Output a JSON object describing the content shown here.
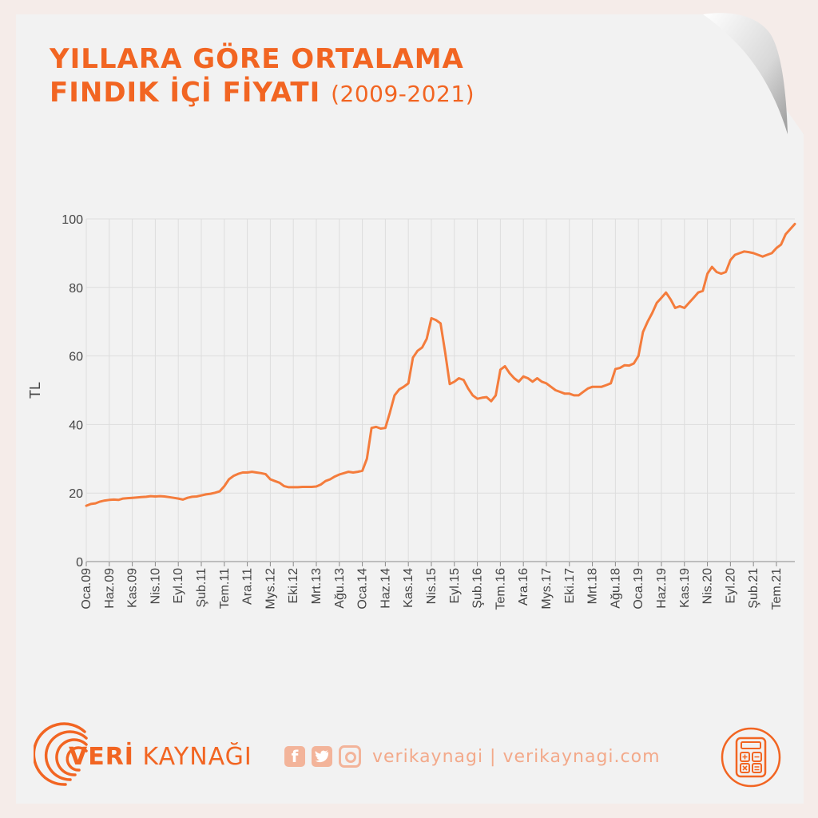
{
  "title": {
    "line1": "YILLARA GÖRE ORTALAMA",
    "line2": "FINDIK İÇİ FİYATI",
    "years": "(2009-2021)"
  },
  "footer": {
    "brand_bold": "VERİ",
    "brand_rest": "KAYNAĞI",
    "social_text": "verikaynagi | verikaynagi.com",
    "icons": [
      "facebook-icon",
      "twitter-icon",
      "instagram-icon",
      "calculator-icon"
    ]
  },
  "colors": {
    "accent": "#f26522",
    "line": "#f47c3c",
    "grid": "#dddddd"
  },
  "chart_data": {
    "type": "line",
    "ylabel": "TL",
    "xlabel": "",
    "ylim": [
      0,
      100
    ],
    "yticks": [
      0,
      20,
      40,
      60,
      80,
      100
    ],
    "grid": true,
    "xtick_labels": [
      "Oca.09",
      "Haz.09",
      "Kas.09",
      "Nis.10",
      "Eyl.10",
      "Şub.11",
      "Tem.11",
      "Ara.11",
      "Mys.12",
      "Eki.12",
      "Mrt.13",
      "Ağu.13",
      "Oca.14",
      "Haz.14",
      "Kas.14",
      "Nis.15",
      "Eyl.15",
      "Şub.16",
      "Tem.16",
      "Ara.16",
      "Mys.17",
      "Eki.17",
      "Mrt.18",
      "Ağu.18",
      "Oca.19",
      "Haz.19",
      "Kas.19",
      "Nis.20",
      "Eyl.20",
      "Şub.21",
      "Tem.21"
    ],
    "series": [
      {
        "values": [
          16.3,
          16.8,
          17.0,
          17.5,
          17.8,
          18.0,
          18.1,
          18.0,
          18.4,
          18.5,
          18.6,
          18.7,
          18.8,
          18.9,
          19.1,
          19.0,
          19.1,
          19.0,
          18.8,
          18.6,
          18.4,
          18.1,
          18.6,
          18.9,
          19.0,
          19.3,
          19.6,
          19.8,
          20.1,
          20.5,
          22.0,
          24.0,
          25.0,
          25.6,
          26.0,
          26.0,
          26.2,
          26.0,
          25.8,
          25.5,
          24.0,
          23.5,
          23.0,
          22.0,
          21.7,
          21.7,
          21.7,
          21.8,
          21.8,
          21.8,
          21.9,
          22.5,
          23.5,
          24.0,
          24.8,
          25.4,
          25.8,
          26.2,
          26.0,
          26.2,
          26.5,
          30.0,
          39.0,
          39.3,
          38.8,
          39.0,
          43.5,
          48.5,
          50.2,
          51.0,
          52.0,
          59.5,
          61.5,
          62.5,
          65.0,
          71.0,
          70.5,
          69.5,
          61.0,
          51.8,
          52.5,
          53.5,
          53.0,
          50.5,
          48.5,
          47.5,
          47.8,
          48.0,
          46.8,
          48.5,
          56.0,
          57.0,
          55.0,
          53.5,
          52.5,
          54.0,
          53.5,
          52.5,
          53.5,
          52.5,
          52.0,
          51.0,
          50.0,
          49.5,
          49.0,
          49.0,
          48.5,
          48.5,
          49.5,
          50.5,
          51.0,
          51.0,
          51.0,
          51.5,
          52.0,
          56.2,
          56.5,
          57.3,
          57.2,
          57.8,
          60.0,
          67.0,
          70.0,
          72.5,
          75.5,
          77.0,
          78.5,
          76.5,
          74.0,
          74.5,
          74.0,
          75.5,
          77.0,
          78.5,
          79.0,
          84.0,
          86.0,
          84.5,
          84.0,
          84.5,
          88.0,
          89.5,
          90.0,
          90.5,
          90.3,
          90.0,
          89.5,
          89.0,
          89.5,
          90.0,
          91.5,
          92.5,
          95.5,
          97.0,
          98.5
        ]
      }
    ]
  }
}
